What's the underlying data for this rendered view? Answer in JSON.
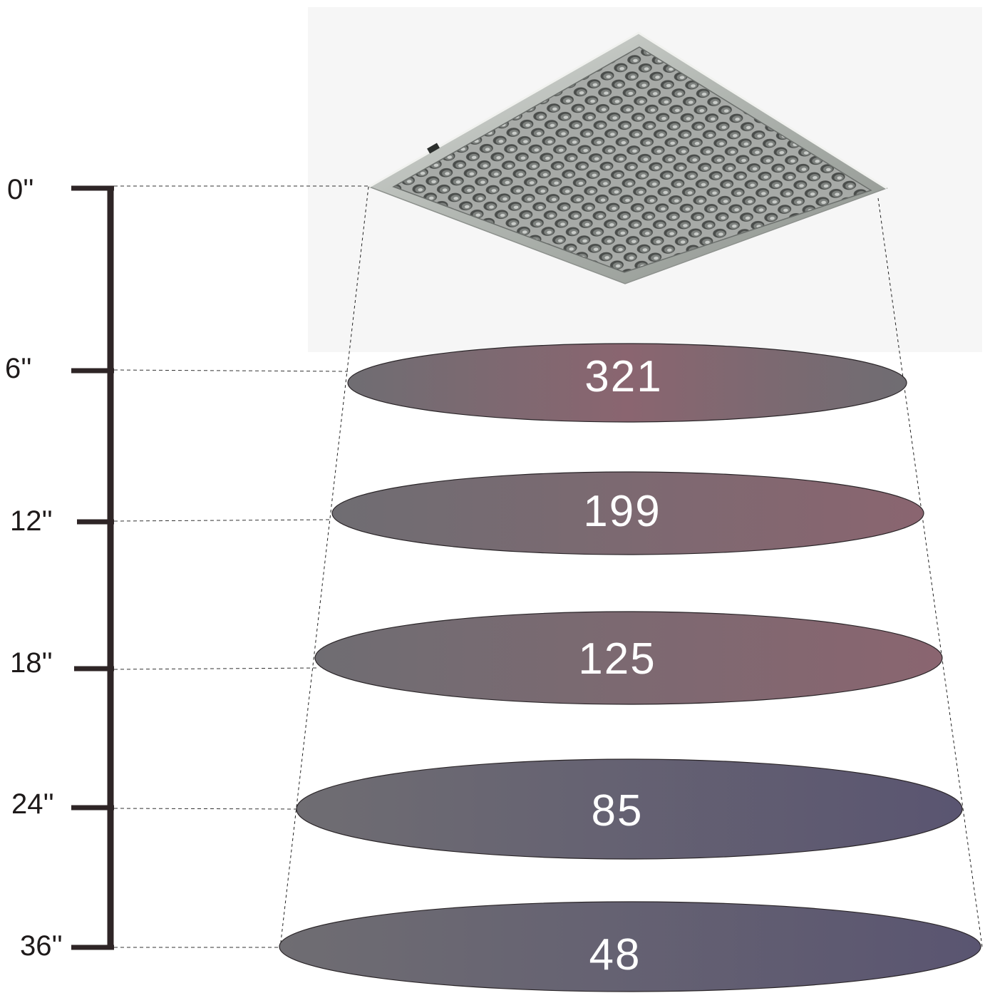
{
  "diagram": {
    "distances": [
      "0''",
      "6''",
      "12''",
      "18''",
      "24''",
      "36''"
    ],
    "readings": [
      {
        "distance": "6''",
        "value": "321"
      },
      {
        "distance": "12''",
        "value": "199"
      },
      {
        "distance": "18''",
        "value": "125"
      },
      {
        "distance": "24''",
        "value": "85"
      },
      {
        "distance": "36''",
        "value": "48"
      }
    ]
  },
  "colors": {
    "ruler": "#2e2526",
    "grey": "#6f6d72",
    "mauve": "#8a6570",
    "blue_violet": "#5a5571"
  },
  "icons": {
    "lamp": "led-grow-light-panel-icon"
  }
}
